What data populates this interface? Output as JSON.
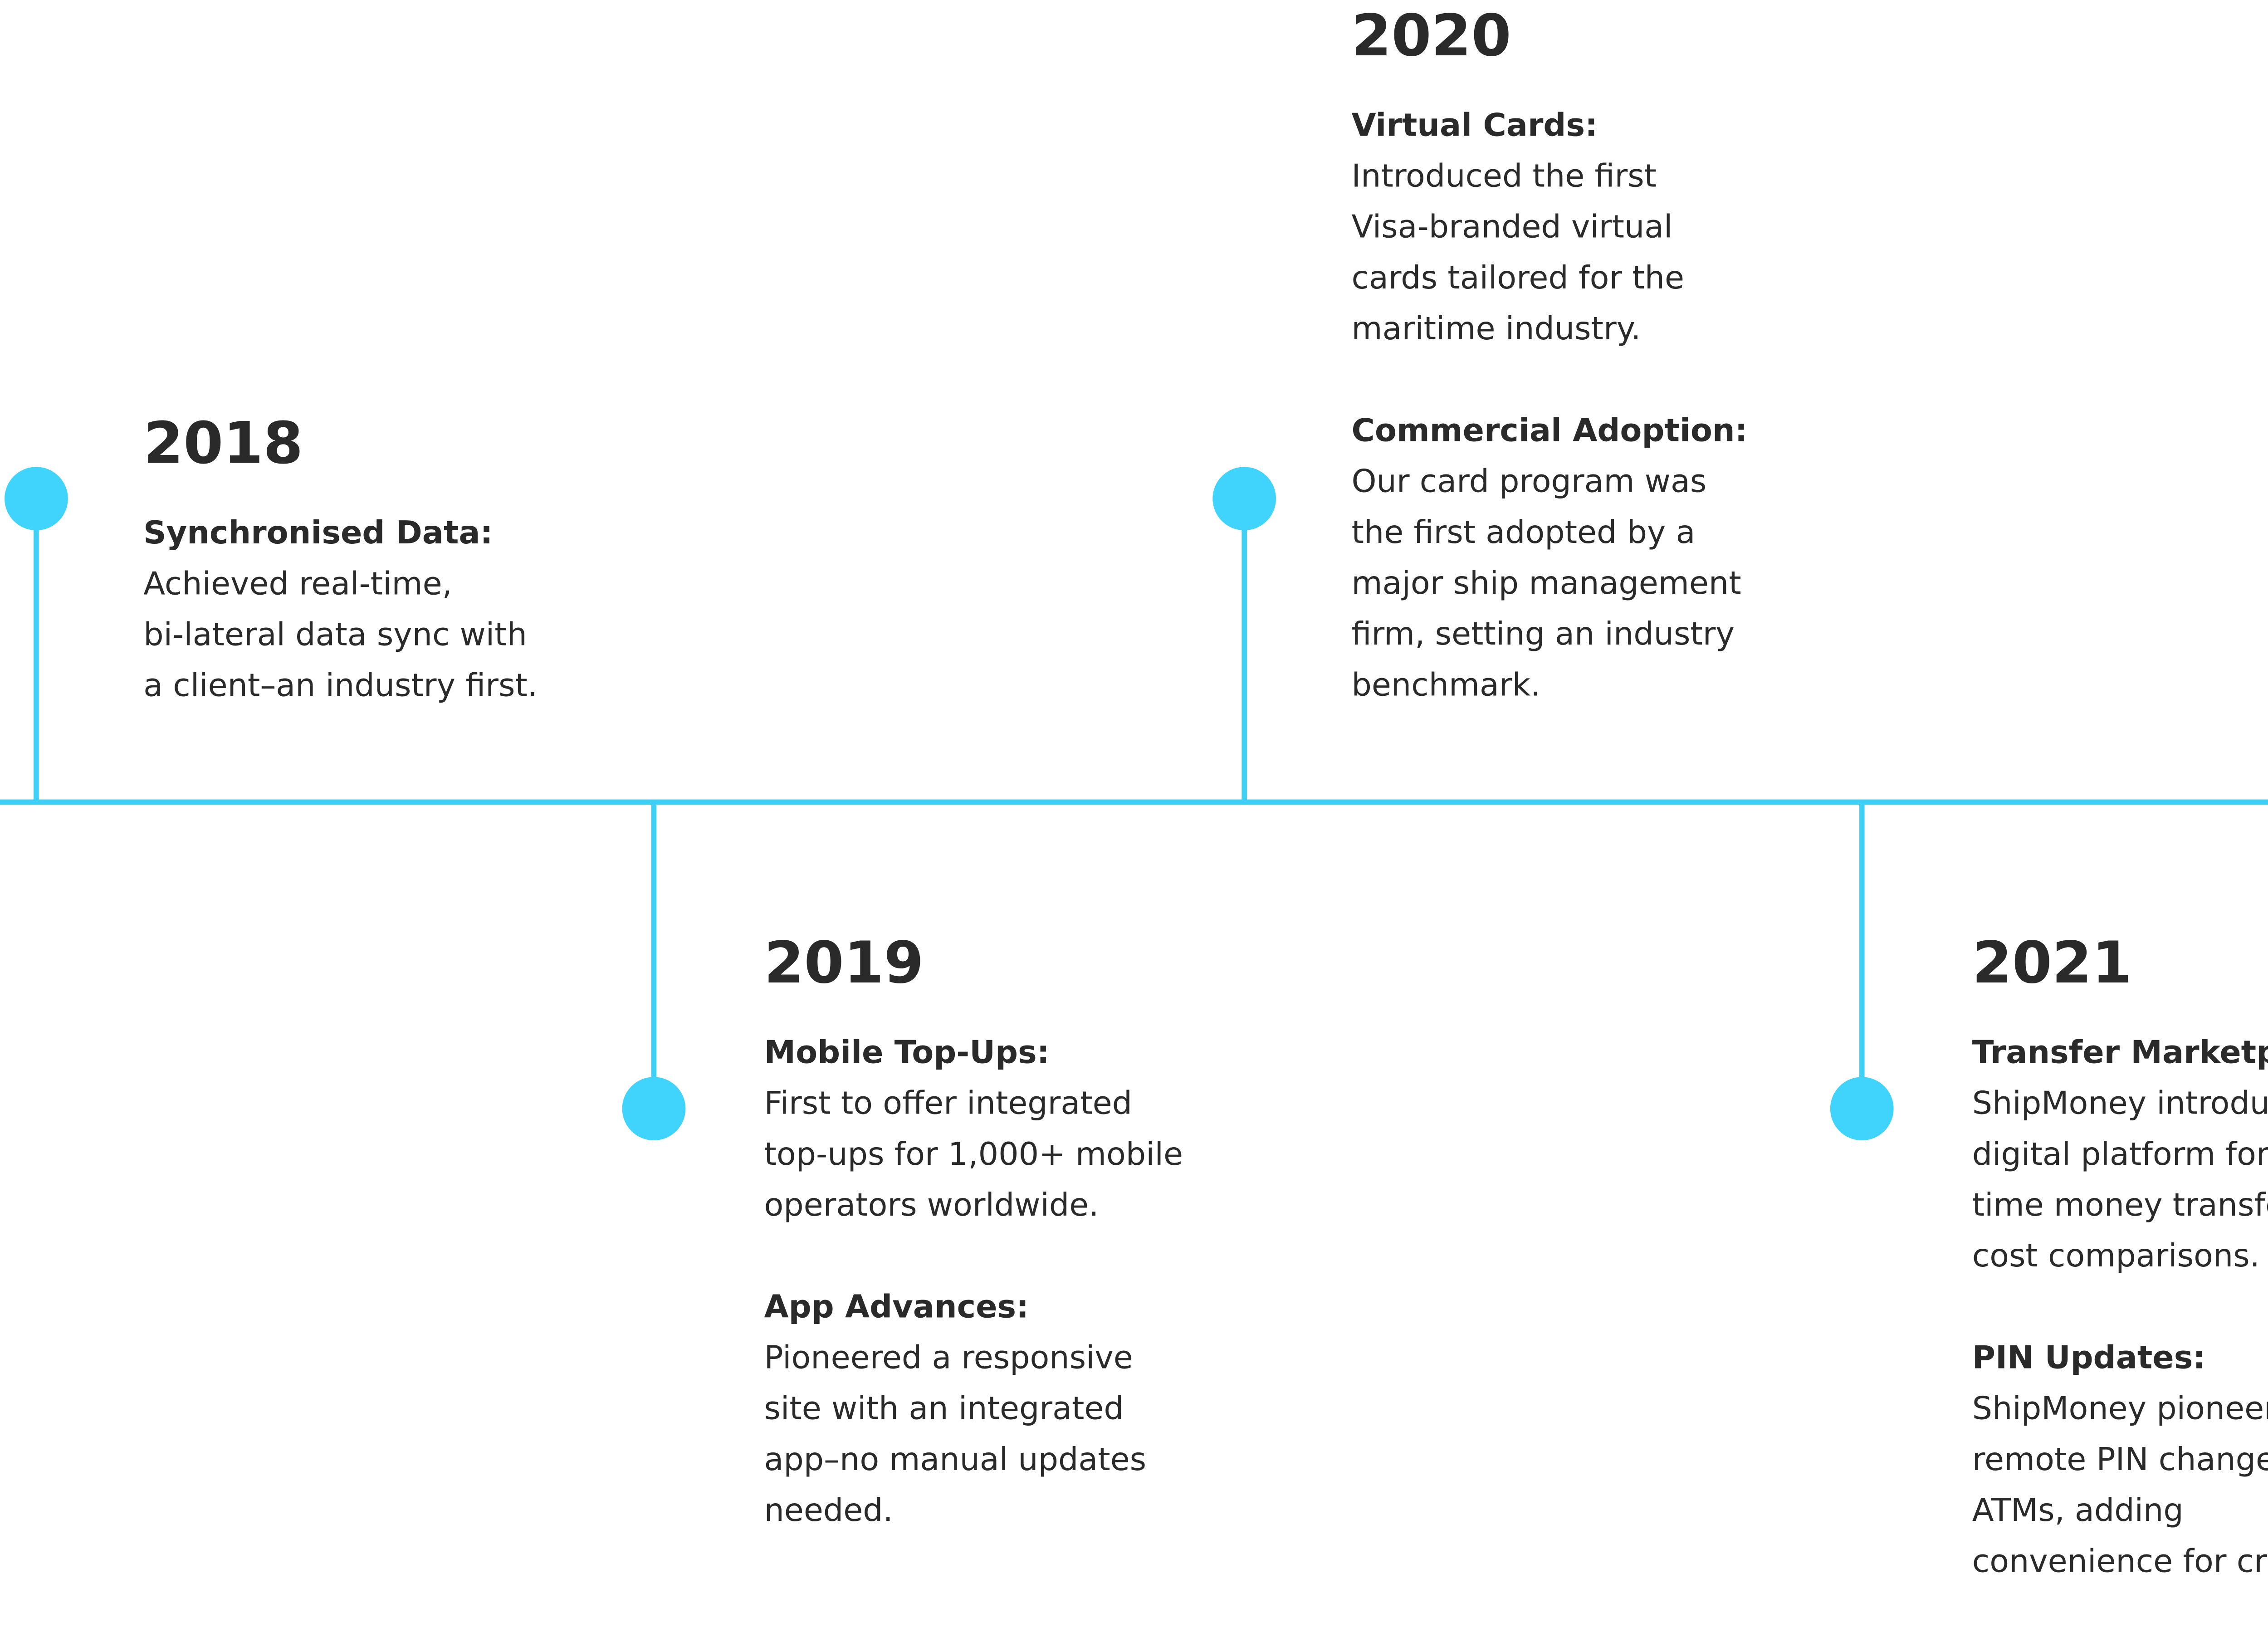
{
  "items": [
    {
      "year": "2018",
      "entries": [
        {
          "heading": "Synchronised Data:",
          "lines": [
            "Achieved real-time,",
            "bi-lateral data sync with",
            "a client–an industry first."
          ]
        }
      ]
    },
    {
      "year": "2019",
      "entries": [
        {
          "heading": "Mobile Top-Ups:",
          "lines": [
            "First to offer integrated",
            "top-ups for 1,000+ mobile",
            "operators worldwide."
          ]
        },
        {
          "heading": "App Advances:",
          "lines": [
            "Pioneered a responsive",
            "site with an integrated",
            "app–no manual updates",
            "needed."
          ]
        }
      ]
    },
    {
      "year": "2020",
      "entries": [
        {
          "heading": "Virtual Cards:",
          "lines": [
            "Introduced the first",
            "Visa-branded virtual",
            "cards tailored for the",
            "maritime industry."
          ]
        },
        {
          "heading": "Commercial Adoption:",
          "lines": [
            "Our card program was",
            "the first adopted by a",
            "major ship management",
            "firm, setting an industry",
            "benchmark."
          ]
        }
      ]
    },
    {
      "year": "2021",
      "entries": [
        {
          "heading": "Transfer Marketplace:",
          "lines": [
            "ShipMoney introduced a",
            "digital platform for real-",
            "time money transfer",
            "cost comparisons."
          ]
        },
        {
          "heading": "PIN Updates:",
          "lines": [
            "ShipMoney pioneered",
            "remote PIN changes via",
            "ATMs, adding",
            "convenience for crew."
          ]
        }
      ]
    }
  ]
}
